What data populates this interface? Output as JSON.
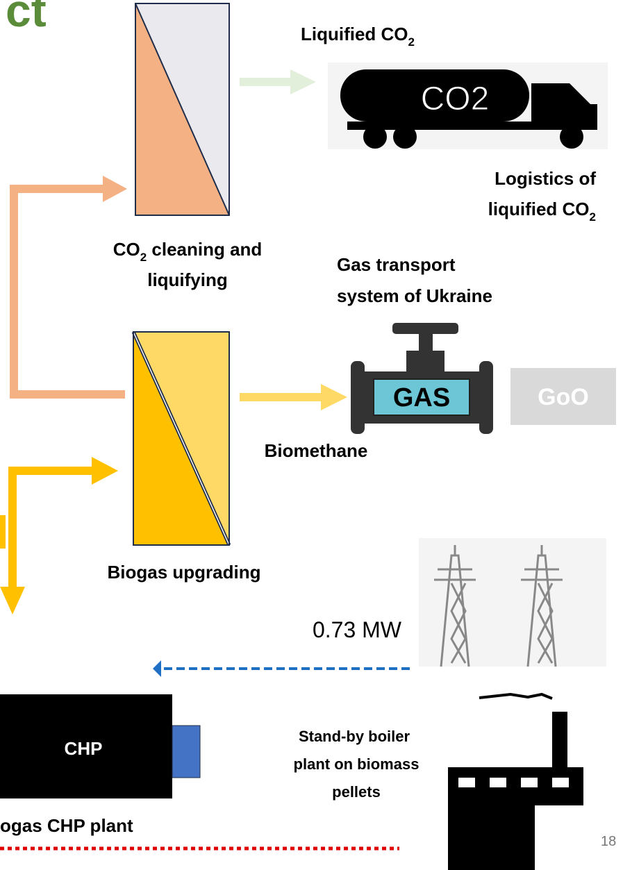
{
  "title_fragment": "ct",
  "liquified_co2": {
    "text": "Liquified CO",
    "sub": "2"
  },
  "truck_label": "CO2",
  "logistics": {
    "line1": "Logistics of",
    "line2": "liquified CO",
    "sub": "2"
  },
  "co2_cleaning": {
    "line1": "CO",
    "sub": "2",
    "line1_rest": " cleaning and",
    "line2": "liquifying"
  },
  "gas_transport": {
    "line1": "Gas transport",
    "line2": "system of Ukraine"
  },
  "gas_label": "GAS",
  "goo": "GoO",
  "biomethane": "Biomethane",
  "biogas_upgrading": "Biogas upgrading",
  "power": "0.73 MW",
  "chp": "CHP",
  "chp_plant": "ogas CHP plant",
  "boiler": {
    "line1": "Stand-by boiler",
    "line2": "plant on biomass",
    "line3": "pellets"
  },
  "page_number": "18"
}
